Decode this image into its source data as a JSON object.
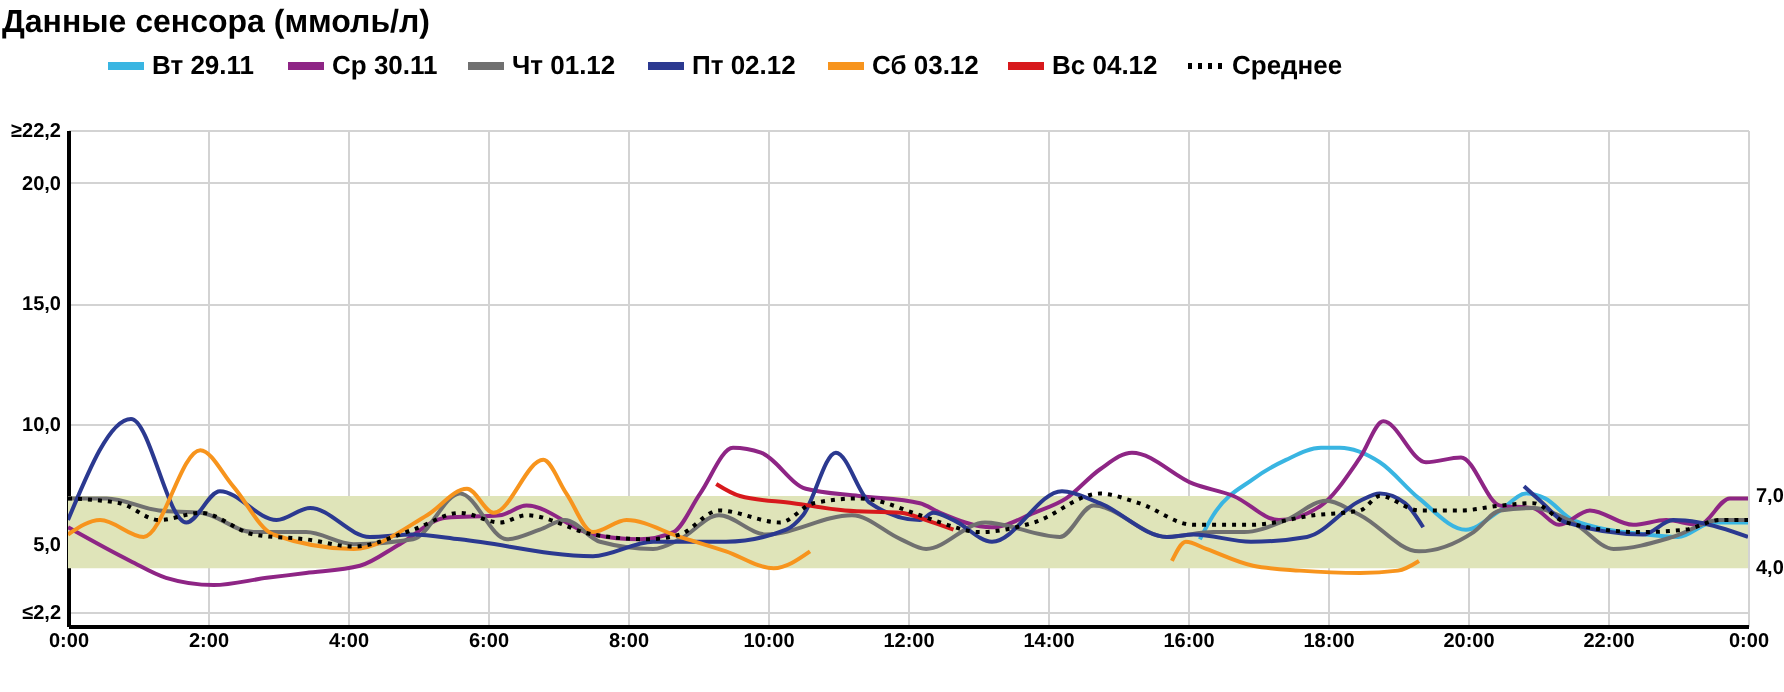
{
  "chart_data": {
    "type": "line",
    "title": "Данные сенсора (ммоль/л)",
    "xlim": [
      0,
      24
    ],
    "xticks": [
      {
        "value": 0,
        "label": "0:00"
      },
      {
        "value": 2,
        "label": "2:00"
      },
      {
        "value": 4,
        "label": "4:00"
      },
      {
        "value": 6,
        "label": "6:00"
      },
      {
        "value": 8,
        "label": "8:00"
      },
      {
        "value": 10,
        "label": "10:00"
      },
      {
        "value": 12,
        "label": "12:00"
      },
      {
        "value": 14,
        "label": "14:00"
      },
      {
        "value": 16,
        "label": "16:00"
      },
      {
        "value": 18,
        "label": "18:00"
      },
      {
        "value": 20,
        "label": "20:00"
      },
      {
        "value": 22,
        "label": "22:00"
      },
      {
        "value": 24,
        "label": "0:00"
      }
    ],
    "ylim": [
      1.6,
      22.2
    ],
    "yticks": [
      {
        "value": 2.2,
        "label": "≤2,2"
      },
      {
        "value": 5,
        "label": "5,0"
      },
      {
        "value": 10,
        "label": "10,0"
      },
      {
        "value": 15,
        "label": "15,0"
      },
      {
        "value": 20,
        "label": "20,0"
      },
      {
        "value": 22.2,
        "label": "≥22,2"
      }
    ],
    "grid": true,
    "legend": "top",
    "marker": "none",
    "bands": [
      {
        "axis": "y",
        "from": 4,
        "to": 7,
        "color": "#dfe4b9"
      }
    ],
    "annotations": [
      {
        "text": "7,0",
        "x": 24,
        "y": 7
      },
      {
        "text": "4,0",
        "x": 24,
        "y": 4
      }
    ],
    "series": [
      {
        "name": "Вт 29.11",
        "color": "#39b5e2",
        "line_style": "solid",
        "x": [
          16.17,
          16.36,
          16.93,
          17.4,
          17.9,
          18.17,
          18.74,
          19.3,
          19.97,
          20.46,
          20.83,
          21.1,
          21.5,
          22.54,
          23.0,
          23.5,
          24
        ],
        "values": [
          5.2,
          6.2,
          7.7,
          8.5,
          9.0,
          9.0,
          8.4,
          6.9,
          5.6,
          6.4,
          7.1,
          6.9,
          6.0,
          5.4,
          5.3,
          5.9,
          5.9
        ]
      },
      {
        "name": "Ср 30.11",
        "color": "#8e2585",
        "line_style": "solid",
        "x": [
          0,
          0.89,
          1.4,
          2.08,
          2.84,
          3.4,
          4.17,
          4.74,
          5.4,
          6.17,
          6.55,
          7.5,
          8.17,
          8.65,
          9.03,
          9.5,
          9.9,
          10.54,
          11.3,
          12.17,
          12.46,
          13.2,
          13.8,
          14.26,
          14.74,
          15.2,
          16.08,
          16.65,
          17.3,
          17.9,
          18.46,
          18.79,
          19.4,
          19.9,
          20.46,
          20.93,
          21.3,
          21.74,
          22.36,
          22.83,
          23.3,
          23.74,
          24
        ],
        "values": [
          5.7,
          4.3,
          3.6,
          3.3,
          3.6,
          3.8,
          4.1,
          5.0,
          6.1,
          6.2,
          6.6,
          5.4,
          5.2,
          5.5,
          7.1,
          9.0,
          8.8,
          7.3,
          7.0,
          6.7,
          6.3,
          5.7,
          6.3,
          6.9,
          8.1,
          8.8,
          7.5,
          7.0,
          6.0,
          6.6,
          8.6,
          10.1,
          8.4,
          8.6,
          6.6,
          6.5,
          5.8,
          6.4,
          5.8,
          6.0,
          5.8,
          6.9,
          6.9
        ]
      },
      {
        "name": "Чт 01.12",
        "color": "#707070",
        "line_style": "solid",
        "x": [
          0,
          0.55,
          1.3,
          1.9,
          2.65,
          3.4,
          4.08,
          4.93,
          5.6,
          6.27,
          6.74,
          7.1,
          7.6,
          8.36,
          8.74,
          9.3,
          9.97,
          11.2,
          11.9,
          12.26,
          13.1,
          14.17,
          14.65,
          15.7,
          16.36,
          16.8,
          17.4,
          17.97,
          18.46,
          19.3,
          20.08,
          20.46,
          20.93,
          21.5,
          22.08,
          22.93,
          23.6,
          24
        ],
        "values": [
          6.9,
          6.9,
          6.4,
          6.3,
          5.5,
          5.5,
          5.0,
          5.2,
          7.1,
          5.2,
          5.6,
          6.0,
          5.1,
          4.8,
          5.2,
          6.2,
          5.4,
          6.2,
          5.2,
          4.8,
          5.9,
          5.3,
          6.6,
          5.3,
          5.5,
          5.5,
          6.0,
          6.8,
          6.2,
          4.7,
          5.5,
          6.4,
          6.5,
          5.9,
          4.8,
          5.3,
          6.0,
          6.0
        ]
      },
      {
        "name": "Пт 02.12",
        "color": "#2b3990",
        "line_style": "solid",
        "x": [
          0,
          0.9,
          1.69,
          2.17,
          2.98,
          3.46,
          4.31,
          4.93,
          5.6,
          7.5,
          8.36,
          9.4,
          10.26,
          10.5,
          10.97,
          11.46,
          12.17,
          12.36,
          12.65,
          13.2,
          14.2,
          14.74,
          15.7,
          16.08,
          16.9,
          17.7,
          18.46,
          18.74,
          19.1,
          19.36,
          20.0,
          20.8,
          21.03,
          21.4,
          22.5,
          22.93,
          23.3,
          24
        ],
        "values": [
          6.0,
          10.2,
          5.9,
          7.2,
          6.0,
          6.5,
          5.3,
          5.4,
          5.2,
          4.5,
          5.1,
          5.1,
          5.6,
          6.2,
          8.8,
          6.7,
          6.0,
          6.3,
          6.0,
          5.1,
          7.2,
          6.7,
          5.3,
          5.4,
          5.1,
          5.3,
          6.8,
          7.1,
          6.7,
          5.7,
          null,
          7.4,
          6.8,
          5.9,
          5.4,
          6.0,
          5.9,
          5.3
        ]
      },
      {
        "name": "Сб 03.12",
        "color": "#f7941d",
        "line_style": "solid",
        "x": [
          0,
          0.46,
          1.08,
          1.89,
          2.36,
          2.93,
          4.08,
          5.13,
          5.7,
          6.08,
          6.79,
          7.12,
          7.5,
          7.98,
          8.74,
          9.4,
          10.08,
          10.6,
          13.0,
          15.77,
          15.97,
          16.26,
          16.93,
          17.6,
          18.46,
          19.0,
          19.3
        ],
        "values": [
          5.4,
          6.0,
          5.3,
          8.9,
          7.4,
          5.4,
          4.8,
          6.2,
          7.3,
          6.3,
          8.5,
          7.1,
          5.5,
          6.0,
          5.3,
          4.7,
          4.0,
          4.7,
          null,
          4.3,
          5.1,
          4.8,
          4.1,
          3.9,
          3.8,
          3.9,
          4.3
        ]
      },
      {
        "name": "Вс 04.12",
        "color": "#d7191c",
        "line_style": "solid",
        "x": [
          9.26,
          9.6,
          10.36,
          11.1,
          11.9,
          12.26,
          12.65
        ],
        "values": [
          7.5,
          7.0,
          6.7,
          6.4,
          6.3,
          6.0,
          5.6
        ]
      },
      {
        "name": "Среднее",
        "color": "#000000",
        "line_style": "dotted",
        "x": [
          0,
          0.74,
          1.3,
          1.9,
          2.65,
          3.4,
          4.08,
          4.93,
          5.6,
          6.17,
          6.55,
          7.5,
          8.27,
          8.74,
          9.3,
          10.17,
          10.65,
          11.3,
          12.17,
          12.46,
          13.03,
          13.8,
          14.74,
          15.3,
          16.08,
          16.9,
          17.8,
          18.46,
          18.74,
          19.3,
          19.9,
          20.46,
          20.93,
          21.4,
          22.46,
          23.1,
          23.6,
          24
        ],
        "values": [
          6.9,
          6.7,
          6.0,
          6.3,
          5.4,
          5.2,
          4.9,
          5.6,
          6.3,
          5.9,
          6.2,
          5.4,
          5.2,
          5.4,
          6.4,
          5.9,
          6.7,
          6.9,
          6.2,
          5.9,
          5.5,
          5.9,
          7.1,
          6.7,
          5.8,
          5.8,
          6.2,
          6.4,
          7.0,
          6.4,
          6.4,
          6.6,
          6.7,
          5.9,
          5.5,
          5.6,
          6.0,
          6.0
        ]
      }
    ]
  }
}
